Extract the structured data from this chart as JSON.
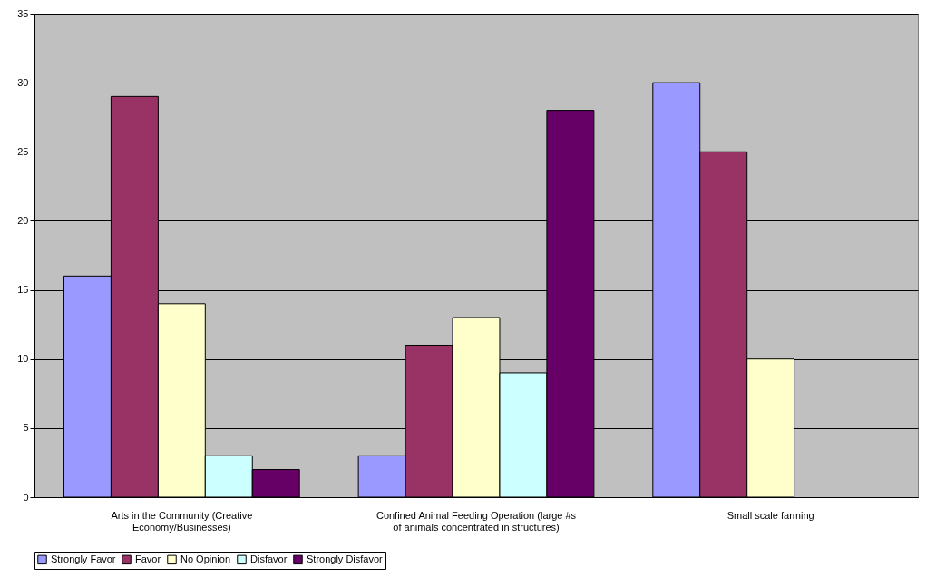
{
  "chart_data": {
    "type": "bar",
    "categories": [
      "Arts in the Community (Creative Economy/Businesses)",
      "Confined Animal Feeding Operation (large #s of animals concentrated in structures)",
      "Small scale farming"
    ],
    "series": [
      {
        "name": "Strongly Favor",
        "color": "#9999ff",
        "values": [
          16,
          3,
          30
        ]
      },
      {
        "name": "Favor",
        "color": "#993366",
        "values": [
          29,
          11,
          25
        ]
      },
      {
        "name": "No Opinion",
        "color": "#ffffcc",
        "values": [
          14,
          13,
          10
        ]
      },
      {
        "name": "Disfavor",
        "color": "#ccffff",
        "values": [
          3,
          9,
          null
        ]
      },
      {
        "name": "Strongly Disfavor",
        "color": "#660066",
        "values": [
          2,
          28,
          null
        ]
      }
    ],
    "ylim": [
      0,
      35
    ],
    "yticks": [
      0,
      5,
      10,
      15,
      20,
      25,
      30,
      35
    ],
    "grid": "y",
    "legend": "bottom"
  }
}
